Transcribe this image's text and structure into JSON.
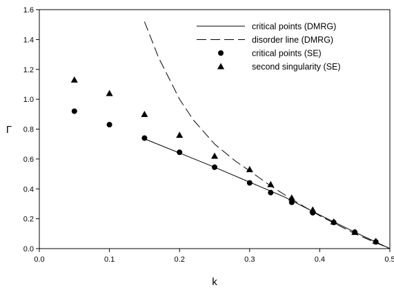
{
  "chart_data": {
    "type": "scatter",
    "title": "",
    "xlabel": "k",
    "ylabel": "Γ",
    "xlim": [
      0.0,
      0.5
    ],
    "ylim": [
      0.0,
      1.6
    ],
    "xticks": [
      "0.0",
      "0.1",
      "0.2",
      "0.3",
      "0.4",
      "0.5"
    ],
    "yticks": [
      "0.0",
      "0.2",
      "0.4",
      "0.6",
      "0.8",
      "1.0",
      "1.2",
      "1.4",
      "1.6"
    ],
    "grid": false,
    "legend_position": "top-right",
    "series": [
      {
        "name": "critical points (DMRG)",
        "style": "solid-line",
        "color": "#000000",
        "x": [
          0.15,
          0.2,
          0.25,
          0.3,
          0.35,
          0.4,
          0.45,
          0.5
        ],
        "y": [
          0.735,
          0.64,
          0.545,
          0.445,
          0.345,
          0.225,
          0.11,
          0.0
        ]
      },
      {
        "name": "disorder line (DMRG)",
        "style": "dashed-line",
        "color": "#000000",
        "x": [
          0.15,
          0.17,
          0.2,
          0.22,
          0.25,
          0.28,
          0.3,
          0.33,
          0.36,
          0.4,
          0.45,
          0.5
        ],
        "y": [
          1.52,
          1.28,
          1.0,
          0.86,
          0.7,
          0.585,
          0.52,
          0.42,
          0.33,
          0.22,
          0.1,
          0.0
        ]
      },
      {
        "name": "critical points (SE)",
        "style": "circle-marker",
        "color": "#000000",
        "x": [
          0.05,
          0.1,
          0.15,
          0.2,
          0.25,
          0.3,
          0.33,
          0.36,
          0.39,
          0.42,
          0.45,
          0.48
        ],
        "y": [
          0.92,
          0.83,
          0.74,
          0.645,
          0.545,
          0.44,
          0.375,
          0.31,
          0.24,
          0.175,
          0.11,
          0.045
        ]
      },
      {
        "name": "second singularity (SE)",
        "style": "triangle-marker",
        "color": "#000000",
        "x": [
          0.05,
          0.1,
          0.15,
          0.2,
          0.25,
          0.3,
          0.33,
          0.36,
          0.39,
          0.42,
          0.45,
          0.48
        ],
        "y": [
          1.13,
          1.04,
          0.9,
          0.76,
          0.62,
          0.53,
          0.43,
          0.34,
          0.26,
          0.18,
          0.11,
          0.05
        ]
      }
    ]
  }
}
